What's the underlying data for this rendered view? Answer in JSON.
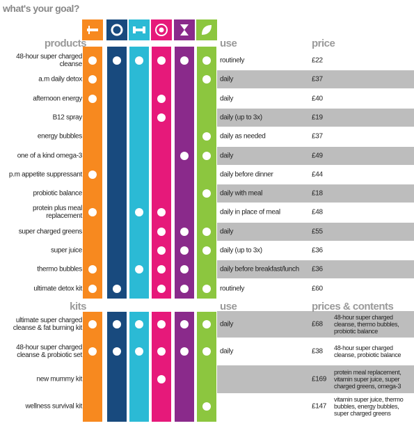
{
  "title": "what's your goal?",
  "goals": [
    {
      "color": "#f7891f"
    },
    {
      "color": "#184a7e"
    },
    {
      "color": "#2bbad5"
    },
    {
      "color": "#e6197a"
    },
    {
      "color": "#8a2a8b"
    },
    {
      "color": "#8cc63f"
    }
  ],
  "products": {
    "headers": [
      "products",
      "use",
      "price"
    ],
    "rows": [
      {
        "name": "48-hour super charged cleanse",
        "goals": [
          true,
          true,
          true,
          true,
          true,
          true
        ],
        "use": "routinely",
        "price": "£22"
      },
      {
        "name": "a.m daily detox",
        "goals": [
          true,
          false,
          false,
          false,
          false,
          true
        ],
        "use": "daily",
        "price": "£37"
      },
      {
        "name": "afternoon energy",
        "goals": [
          true,
          false,
          false,
          true,
          false,
          false
        ],
        "use": "daily",
        "price": "£40"
      },
      {
        "name": "B12 spray",
        "goals": [
          false,
          false,
          false,
          true,
          false,
          false
        ],
        "use": "daily (up to 3x)",
        "price": "£19"
      },
      {
        "name": "energy bubbles",
        "goals": [
          false,
          false,
          false,
          false,
          false,
          true
        ],
        "use": "daily as needed",
        "price": "£37"
      },
      {
        "name": "one of a kind omega-3",
        "goals": [
          false,
          false,
          false,
          false,
          true,
          true
        ],
        "use": "daily",
        "price": "£49"
      },
      {
        "name": "p.m appetite suppressant",
        "goals": [
          true,
          false,
          false,
          false,
          false,
          false
        ],
        "use": "daily before dinner",
        "price": "£44"
      },
      {
        "name": "probiotic balance",
        "goals": [
          false,
          false,
          false,
          false,
          false,
          true
        ],
        "use": "daily with meal",
        "price": "£18"
      },
      {
        "name": "protein plus meal replacement",
        "goals": [
          true,
          false,
          true,
          true,
          false,
          false
        ],
        "use": "daily in place of meal",
        "price": "£48"
      },
      {
        "name": "super charged greens",
        "goals": [
          false,
          false,
          false,
          true,
          true,
          true
        ],
        "use": "daily",
        "price": "£55"
      },
      {
        "name": "super juice",
        "goals": [
          false,
          false,
          false,
          true,
          true,
          true
        ],
        "use": "daily (up to 3x)",
        "price": "£36"
      },
      {
        "name": "thermo bubbles",
        "goals": [
          true,
          false,
          true,
          true,
          true,
          false
        ],
        "use": "daily before breakfast/lunch",
        "price": "£36"
      },
      {
        "name": "ultimate detox kit",
        "goals": [
          true,
          true,
          false,
          true,
          true,
          true
        ],
        "use": "routinely",
        "price": "£60"
      }
    ]
  },
  "kits": {
    "headers": [
      "kits",
      "use",
      "prices & contents"
    ],
    "rows": [
      {
        "name": "ultimate super charged cleanse & fat burning kit",
        "goals": [
          true,
          true,
          true,
          true,
          true,
          true
        ],
        "use": "daily",
        "price": "£68",
        "contents": "48-hour super charged cleanse, thermo bubbles, probiotic balance"
      },
      {
        "name": "48-hour super charged cleanse & probiotic set",
        "goals": [
          true,
          true,
          true,
          true,
          true,
          true
        ],
        "use": "daily",
        "price": "£38",
        "contents": "48-hour super charged cleanse, probiotic balance"
      },
      {
        "name": "new mummy kit",
        "goals": [
          false,
          false,
          false,
          true,
          false,
          false
        ],
        "price": "£169",
        "contents": "protein meal replacement, vitamin super juice, super charged greens, omega-3"
      },
      {
        "name": "wellness survival kit",
        "goals": [
          false,
          false,
          false,
          false,
          false,
          true
        ],
        "price": "£147",
        "contents": "vitamin super juice, thermo bubbles, energy bubbles, super charged greens"
      }
    ]
  }
}
